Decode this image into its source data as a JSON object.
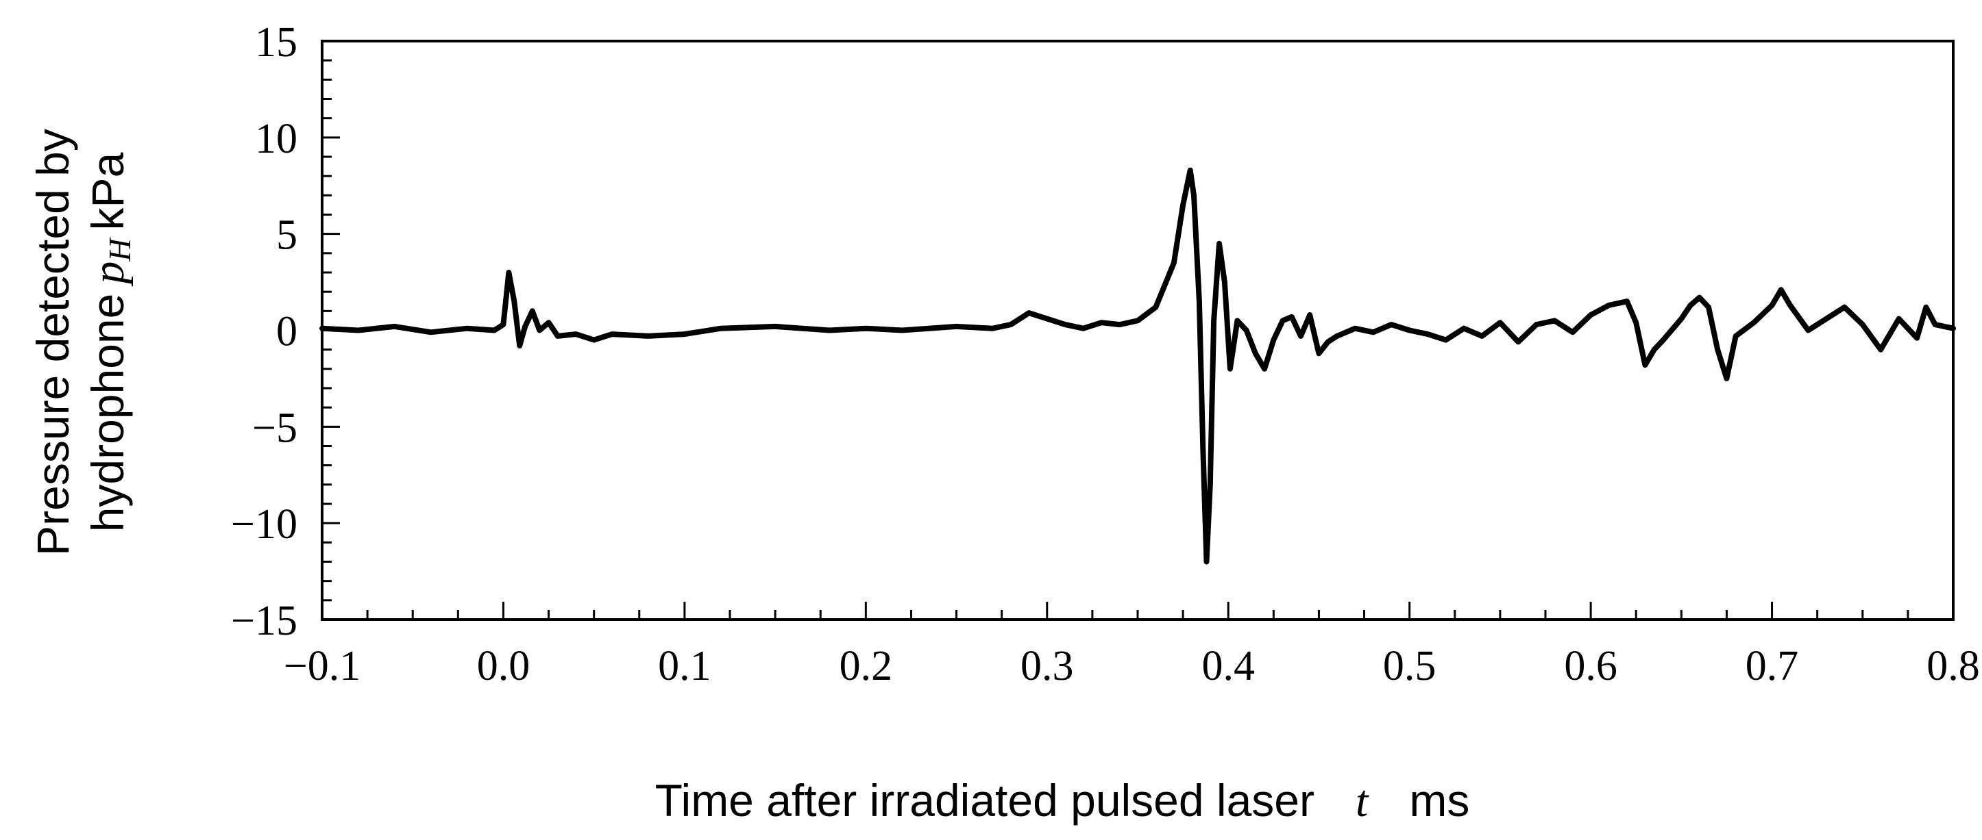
{
  "chart_data": {
    "type": "line",
    "title": "",
    "xlabel": {
      "text": "Time after irradiated pulsed laser",
      "variable": "t",
      "unit": "ms"
    },
    "ylabel": {
      "line1": "Pressure detected by",
      "line2_prefix": "hydrophone",
      "variable": "p",
      "subscript": "H",
      "unit": "kPa"
    },
    "xlim": [
      -0.1,
      0.8
    ],
    "ylim": [
      -15,
      15
    ],
    "x_ticks": [
      "−0.1",
      "0.0",
      "0.1",
      "0.2",
      "0.3",
      "0.4",
      "0.5",
      "0.6",
      "0.7",
      "0.8"
    ],
    "y_ticks": [
      "15",
      "10",
      "5",
      "0",
      "−5",
      "−10",
      "−15"
    ],
    "grid": false,
    "legend": "none",
    "line_color": "#000000",
    "series": [
      {
        "x": [
          -0.1,
          -0.08,
          -0.06,
          -0.04,
          -0.02,
          -0.005,
          0.0,
          0.003,
          0.006,
          0.009,
          0.012,
          0.016,
          0.02,
          0.025,
          0.03,
          0.04,
          0.05,
          0.06,
          0.08,
          0.1,
          0.12,
          0.15,
          0.18,
          0.2,
          0.22,
          0.25,
          0.27,
          0.28,
          0.29,
          0.3,
          0.31,
          0.32,
          0.33,
          0.34,
          0.35,
          0.36,
          0.37,
          0.375,
          0.379,
          0.381,
          0.384,
          0.386,
          0.388,
          0.39,
          0.392,
          0.395,
          0.398,
          0.401,
          0.405,
          0.41,
          0.415,
          0.42,
          0.425,
          0.43,
          0.435,
          0.44,
          0.445,
          0.45,
          0.455,
          0.46,
          0.47,
          0.48,
          0.49,
          0.5,
          0.51,
          0.52,
          0.53,
          0.54,
          0.55,
          0.56,
          0.57,
          0.58,
          0.59,
          0.6,
          0.61,
          0.62,
          0.625,
          0.63,
          0.635,
          0.64,
          0.65,
          0.655,
          0.66,
          0.665,
          0.67,
          0.675,
          0.68,
          0.69,
          0.7,
          0.705,
          0.71,
          0.72,
          0.73,
          0.74,
          0.75,
          0.76,
          0.77,
          0.78,
          0.785,
          0.79,
          0.8
        ],
        "y": [
          0.1,
          0.0,
          0.2,
          -0.1,
          0.1,
          0.0,
          0.3,
          3.0,
          1.5,
          -0.8,
          0.2,
          1.0,
          0.0,
          0.4,
          -0.3,
          -0.2,
          -0.5,
          -0.2,
          -0.3,
          -0.2,
          0.1,
          0.2,
          0.0,
          0.1,
          0.0,
          0.2,
          0.1,
          0.3,
          0.9,
          0.6,
          0.3,
          0.1,
          0.4,
          0.3,
          0.5,
          1.2,
          3.5,
          6.5,
          8.3,
          7.0,
          1.5,
          -6.0,
          -12.0,
          -8.0,
          0.5,
          4.5,
          2.5,
          -2.0,
          0.5,
          0.0,
          -1.2,
          -2.0,
          -0.5,
          0.5,
          0.7,
          -0.3,
          0.8,
          -1.2,
          -0.6,
          -0.3,
          0.1,
          -0.1,
          0.3,
          0.0,
          -0.2,
          -0.5,
          0.1,
          -0.3,
          0.4,
          -0.6,
          0.3,
          0.5,
          -0.1,
          0.8,
          1.3,
          1.5,
          0.4,
          -1.8,
          -1.0,
          -0.5,
          0.6,
          1.3,
          1.7,
          1.2,
          -1.0,
          -2.5,
          -0.3,
          0.4,
          1.3,
          2.1,
          1.3,
          0.0,
          0.6,
          1.2,
          0.3,
          -1.0,
          0.6,
          -0.4,
          1.2,
          0.3,
          0.1
        ]
      }
    ]
  }
}
